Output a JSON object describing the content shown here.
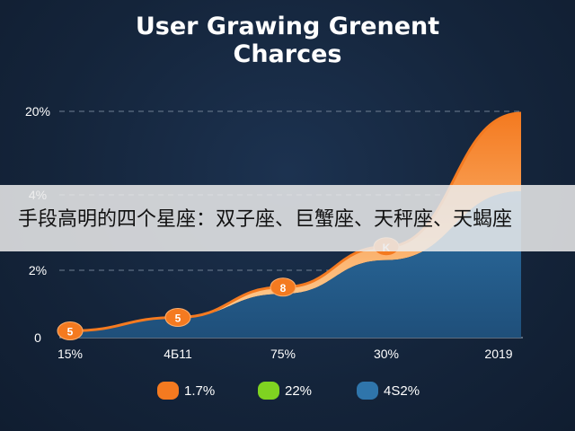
{
  "title_line1": "User Grawing Grenent",
  "title_line2": "Charces",
  "overlay_text": "手段高明的四个星座：双子座、巨蟹座、天秤座、天蝎座",
  "colors": {
    "orange": "#f47a20",
    "green": "#7fd321",
    "blue": "#2f75ab"
  },
  "chart_data": {
    "type": "area",
    "x_tick_labels": [
      "15%",
      "4Б11",
      "75%",
      "30%",
      "2019"
    ],
    "y_tick_labels": [
      "0",
      "2%",
      "4%",
      "20%"
    ],
    "grid": true,
    "series": [
      {
        "values": [
          0.2,
          0.6,
          1.3,
          2.3,
          4.1
        ],
        "color": "#2f75ab"
      },
      {
        "values": [
          0.2,
          0.6,
          1.5,
          2.7,
          6.5
        ],
        "color": "#f47a20"
      }
    ],
    "markers": [
      "5",
      "5",
      "8",
      "K"
    ],
    "legend": [
      {
        "label": "1.7%",
        "color": "#f47a20"
      },
      {
        "label": "22%",
        "color": "#7fd321"
      },
      {
        "label": "4S2%",
        "color": "#2f75ab"
      }
    ],
    "legend_position": "bottom"
  }
}
